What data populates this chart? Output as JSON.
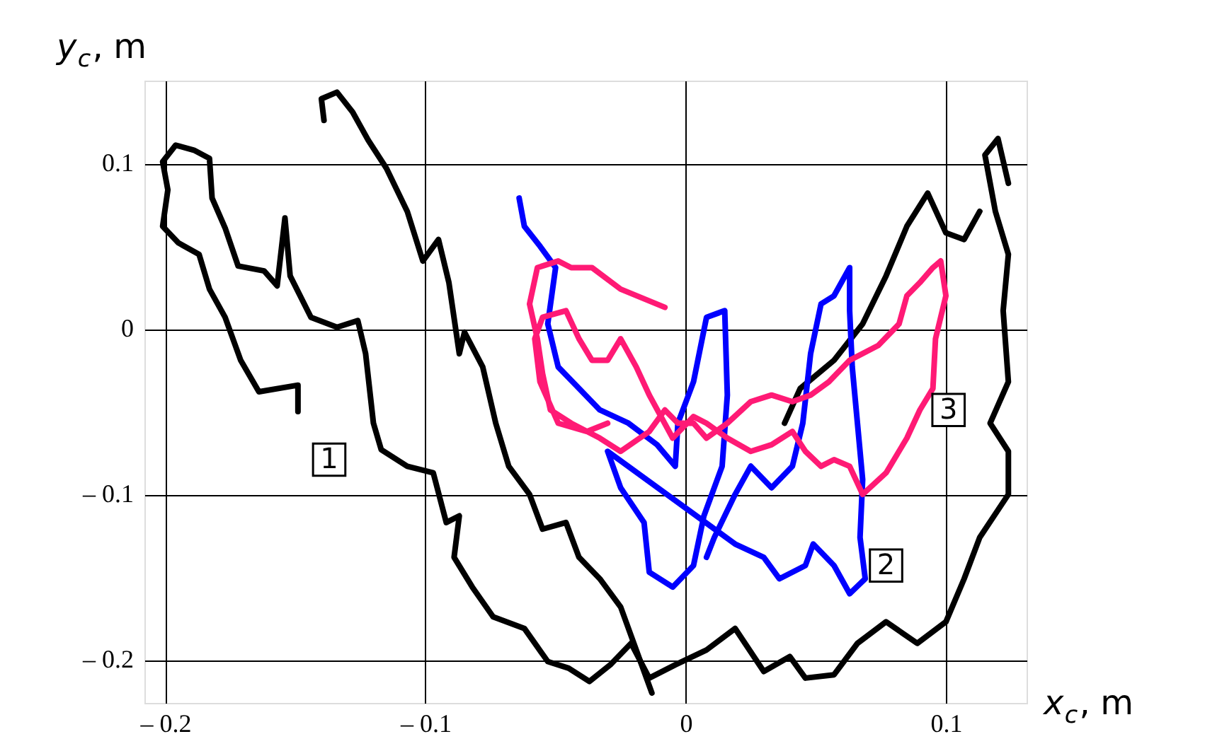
{
  "chart_data": {
    "type": "line",
    "xlabel": "x$_{c}$, m",
    "ylabel": "y$_{c}$, m",
    "xlim": [
      -0.208,
      0.131
    ],
    "ylim": [
      -0.226,
      0.15
    ],
    "xticks": [
      {
        "value": -0.2,
        "label": "– 0.2"
      },
      {
        "value": -0.1,
        "label": "– 0.1"
      },
      0,
      0.1
    ],
    "yticks": [
      {
        "value": -0.2,
        "label": "– 0.2"
      },
      {
        "value": -0.1,
        "label": "– 0.1"
      },
      0,
      0.1
    ],
    "grid": true,
    "legend": false,
    "line_style": "solid",
    "marker": "none",
    "series": [
      {
        "color": "#000000",
        "x": [
          -0.149,
          -0.149,
          -0.164,
          -0.171,
          -0.177,
          -0.183,
          -0.187,
          -0.195,
          -0.201,
          -0.199,
          -0.201,
          -0.196,
          -0.189,
          -0.183,
          -0.182,
          -0.177,
          -0.172,
          -0.162,
          -0.157,
          -0.154,
          -0.152,
          -0.144,
          -0.134,
          -0.126,
          -0.123,
          -0.12,
          -0.117,
          -0.107,
          -0.097,
          -0.092,
          -0.087,
          -0.089,
          -0.082,
          -0.074,
          -0.062,
          -0.053,
          -0.045,
          -0.037,
          -0.029,
          -0.021,
          -0.014,
          -0.004,
          0.008,
          0.019,
          0.03,
          0.04,
          0.046,
          0.057,
          0.066,
          0.077,
          0.089,
          0.1,
          0.107,
          0.113,
          0.124,
          0.124,
          0.117,
          0.124,
          0.122,
          0.124,
          0.119,
          0.115,
          0.12,
          0.124,
          null,
          0.038,
          0.044,
          0.057,
          0.068,
          0.077,
          0.085,
          0.093,
          0.1,
          0.107,
          0.113,
          null,
          -0.139,
          -0.14,
          -0.134,
          -0.128,
          -0.122,
          -0.115,
          -0.107,
          -0.101,
          -0.095,
          -0.091,
          -0.087,
          -0.085,
          -0.078,
          -0.073,
          -0.068,
          -0.06,
          -0.055,
          -0.046,
          -0.041,
          -0.033,
          -0.025,
          -0.019,
          -0.013
        ],
        "values": [
          -0.05,
          -0.034,
          -0.038,
          -0.019,
          0.007,
          0.024,
          0.045,
          0.052,
          0.062,
          0.084,
          0.101,
          0.111,
          0.108,
          0.103,
          0.079,
          0.061,
          0.038,
          0.035,
          0.026,
          0.067,
          0.032,
          0.007,
          0.001,
          0.005,
          -0.015,
          -0.057,
          -0.073,
          -0.083,
          -0.087,
          -0.117,
          -0.113,
          -0.138,
          -0.156,
          -0.174,
          -0.181,
          -0.201,
          -0.205,
          -0.213,
          -0.203,
          -0.19,
          -0.211,
          -0.203,
          -0.194,
          -0.181,
          -0.207,
          -0.198,
          -0.211,
          -0.209,
          -0.19,
          -0.177,
          -0.19,
          -0.177,
          -0.151,
          -0.126,
          -0.1,
          -0.074,
          -0.057,
          -0.032,
          0.011,
          0.045,
          0.071,
          0.105,
          0.115,
          0.088,
          null,
          -0.057,
          -0.036,
          -0.019,
          0.003,
          0.032,
          0.062,
          0.082,
          0.058,
          0.054,
          0.071,
          null,
          0.126,
          0.139,
          0.143,
          0.131,
          0.114,
          0.097,
          0.071,
          0.041,
          0.054,
          0.028,
          -0.015,
          -0.002,
          -0.023,
          -0.057,
          -0.083,
          -0.1,
          -0.121,
          -0.117,
          -0.138,
          -0.151,
          -0.168,
          -0.194,
          -0.22
        ]
      },
      {
        "color": "#0000ff",
        "x": [
          -0.064,
          -0.062,
          -0.056,
          -0.05,
          -0.053,
          -0.049,
          -0.041,
          -0.033,
          -0.022,
          -0.011,
          -0.004,
          -0.003,
          0.003,
          0.008,
          0.015,
          0.016,
          0.014,
          0.007,
          0.003,
          -0.005,
          -0.014,
          -0.016,
          -0.025,
          -0.03,
          0.019,
          0.03,
          0.036,
          0.046,
          0.049,
          0.057,
          0.063,
          0.069,
          0.067,
          0.068,
          0.066,
          0.064,
          0.063,
          0.063,
          0.057,
          0.052,
          0.048,
          0.045,
          0.041,
          0.033,
          0.025,
          0.019,
          0.011,
          0.008
        ],
        "values": [
          0.079,
          0.062,
          0.05,
          0.037,
          0.003,
          -0.023,
          -0.036,
          -0.049,
          -0.057,
          -0.07,
          -0.083,
          -0.057,
          -0.032,
          0.007,
          0.011,
          -0.04,
          -0.083,
          -0.113,
          -0.143,
          -0.156,
          -0.147,
          -0.117,
          -0.096,
          -0.074,
          -0.13,
          -0.138,
          -0.151,
          -0.143,
          -0.13,
          -0.143,
          -0.16,
          -0.151,
          -0.126,
          -0.091,
          -0.057,
          -0.023,
          0.011,
          0.037,
          0.02,
          0.015,
          -0.015,
          -0.057,
          -0.083,
          -0.096,
          -0.083,
          -0.1,
          -0.126,
          -0.138
        ]
      },
      {
        "color": "#ff1a75",
        "x": [
          -0.008,
          -0.025,
          -0.036,
          -0.044,
          -0.049,
          -0.057,
          -0.06,
          -0.057,
          -0.055,
          -0.052,
          -0.044,
          -0.033,
          -0.025,
          -0.014,
          -0.008,
          -0.003,
          0.003,
          0.008,
          0.016,
          0.025,
          0.033,
          0.041,
          0.048,
          0.055,
          0.063,
          0.074,
          0.082,
          0.085,
          0.09,
          0.095,
          0.098,
          0.1,
          0.096,
          0.095,
          0.09,
          0.085,
          0.077,
          0.068,
          0.063,
          0.057,
          0.052,
          0.046,
          0.041,
          0.033,
          0.025,
          0.016,
          0.008,
          0.003,
          -0.005,
          -0.014,
          -0.019,
          -0.025,
          -0.03,
          -0.036,
          -0.041,
          -0.046,
          -0.055,
          -0.058,
          -0.056,
          -0.049,
          -0.038,
          -0.03
        ],
        "values": [
          0.013,
          0.024,
          0.037,
          0.037,
          0.041,
          0.037,
          0.015,
          -0.006,
          -0.027,
          -0.049,
          -0.057,
          -0.066,
          -0.074,
          -0.062,
          -0.049,
          -0.057,
          -0.057,
          -0.066,
          -0.057,
          -0.044,
          -0.04,
          -0.044,
          -0.04,
          -0.032,
          -0.019,
          -0.01,
          0.003,
          0.02,
          0.028,
          0.037,
          0.041,
          0.02,
          -0.006,
          -0.036,
          -0.049,
          -0.066,
          -0.087,
          -0.1,
          -0.083,
          -0.079,
          -0.083,
          -0.074,
          -0.062,
          -0.07,
          -0.074,
          -0.066,
          -0.057,
          -0.053,
          -0.066,
          -0.04,
          -0.023,
          -0.006,
          -0.019,
          -0.019,
          -0.006,
          0.011,
          0.007,
          -0.006,
          -0.032,
          -0.057,
          -0.062,
          -0.057
        ]
      }
    ],
    "annotations": [
      {
        "text": "1",
        "x": -0.137,
        "y": -0.079
      },
      {
        "text": "2",
        "x": 0.077,
        "y": -0.143
      },
      {
        "text": "3",
        "x": 0.101,
        "y": -0.049
      }
    ]
  }
}
